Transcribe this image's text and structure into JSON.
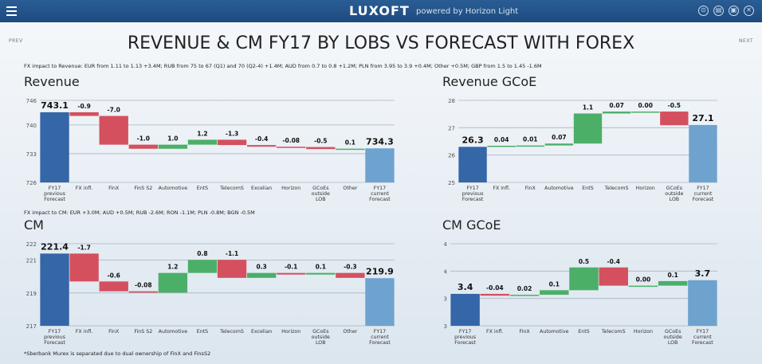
{
  "header": {
    "brand": "LUXOFT",
    "powered": "powered by Horizon Light"
  },
  "nav": {
    "prev": "PREV",
    "next": "NEXT"
  },
  "page_title": "REVENUE & CM FY17 BY LOBS VS FORECAST WITH FOREX",
  "notes": {
    "fx_revenue": "FX impact to Revenue: EUR from 1.11 to 1.13 +3.4M; RUB from 75 to 67 (Q1) and 70 (Q2-4) +1.4M; AUD from 0.7 to 0.8 +1.2M; PLN from 3.95 to 3.9 +0.4M; Other +0.5M; GBP from 1.5 to 1.45 -1.6M",
    "fx_cm": "FX impact to CM: EUR +3.0M; AUD +0.5M; RUB -2.6M; RON -1.1M; PLN -0.8M; BGN -0.5M",
    "footnote": "*Sberbank Murex is separated due to dual ownership of FinX and FinsS2"
  },
  "colors": {
    "total": "#3466a8",
    "total_end": "#6ea3d0",
    "up": "#4caf68",
    "down": "#d4505e",
    "grid": "#aab4bf"
  },
  "chart_data": [
    {
      "type": "bar",
      "title": "Revenue",
      "ylim": [
        726,
        746
      ],
      "yticks": [
        726,
        733,
        740,
        746
      ],
      "start": 743.1,
      "categories": [
        "FY17\nprevious\nForecast",
        "FX infl.",
        "FinX",
        "FinS S2",
        "Automotive",
        "EntS",
        "TelecomS",
        "Excelian",
        "Horizon",
        "GCoEs\noutside\nLOB",
        "Other",
        "FY17\ncurrent\nForecast"
      ],
      "labels": [
        "743.1",
        "-0.9",
        "-7.0",
        "-1.0",
        "1.0",
        "1.2",
        "-1.3",
        "-0.4",
        "-0.08",
        "-0.5",
        "0.1",
        "734.3"
      ],
      "deltas": [
        -0.9,
        -7.0,
        -1.0,
        1.0,
        1.2,
        -1.3,
        -0.4,
        -0.08,
        -0.5,
        0.1
      ],
      "end": 734.3
    },
    {
      "type": "bar",
      "title": "Revenue GCoE",
      "ylim": [
        25,
        28
      ],
      "yticks": [
        25,
        26,
        27,
        28
      ],
      "start": 26.3,
      "categories": [
        "FY17\nprevious\nForecast",
        "FX infl.",
        "FinX",
        "Automotive",
        "EntS",
        "TelecomS",
        "Horizon",
        "GCoEs\noutside\nLOB",
        "FY17\ncurrent\nForecast"
      ],
      "labels": [
        "26.3",
        "0.04",
        "0.01",
        "0.07",
        "1.1",
        "0.07",
        "0.00",
        "-0.5",
        "27.1"
      ],
      "deltas": [
        0.04,
        0.01,
        0.07,
        1.1,
        0.07,
        0.0,
        -0.5
      ],
      "end": 27.1
    },
    {
      "type": "bar",
      "title": "CM",
      "ylim": [
        217,
        222
      ],
      "yticks": [
        217,
        219,
        221,
        222
      ],
      "start": 221.4,
      "categories": [
        "FY17\nprevious\nForecast",
        "FX infl.",
        "FinX",
        "FinS S2",
        "Automotive",
        "EntS",
        "TelecomS",
        "Excelian",
        "Horizon",
        "GCoEs\noutside\nLOB",
        "Other",
        "FY17\ncurrent\nForecast"
      ],
      "labels": [
        "221.4",
        "-1.7",
        "-0.6",
        "-0.08",
        "1.2",
        "0.8",
        "-1.1",
        "0.3",
        "-0.1",
        "0.1",
        "-0.3",
        "219.9"
      ],
      "deltas": [
        -1.7,
        -0.6,
        -0.08,
        1.2,
        0.8,
        -1.1,
        0.3,
        -0.1,
        0.1,
        -0.3
      ],
      "end": 219.9
    },
    {
      "type": "bar",
      "title": "CM GCoE",
      "ylim": [
        3,
        4
      ],
      "yticks": [
        "3",
        "3",
        "4",
        "4"
      ],
      "ytick_values": [
        2.7,
        3.3,
        3.9,
        4.5
      ],
      "start": 3.4,
      "categories": [
        "FY17\nprevious\nForecast",
        "FX infl.",
        "FinX",
        "Automotive",
        "EntS",
        "TelecomS",
        "Horizon",
        "GCoEs\noutside\nLOB",
        "FY17\ncurrent\nForecast"
      ],
      "labels": [
        "3.4",
        "-0.04",
        "0.02",
        "0.1",
        "0.5",
        "-0.4",
        "0.00",
        "0.1",
        "3.7"
      ],
      "deltas": [
        -0.04,
        0.02,
        0.1,
        0.5,
        -0.4,
        0.0,
        0.1
      ],
      "end": 3.7
    }
  ]
}
